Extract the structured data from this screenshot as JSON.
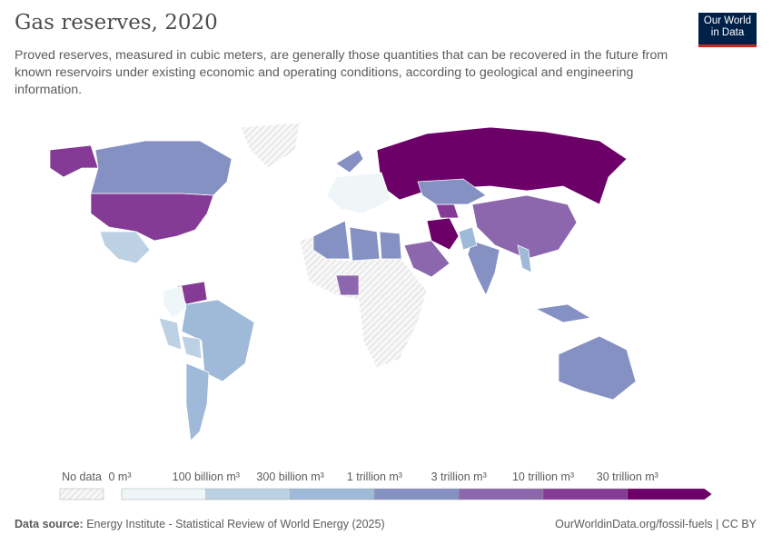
{
  "header": {
    "title": "Gas reserves, 2020",
    "subtitle": "Proved reserves, measured in cubic meters, are generally those quantities that can be recovered in the future from known reservoirs under existing economic and operating conditions, according to geological and engineering information.",
    "logo": "Our World in Data"
  },
  "legend": {
    "no_data_label": "No data",
    "labels": [
      "0 m³",
      "100 billion m³",
      "300 billion m³",
      "1 trillion m³",
      "3 trillion m³",
      "10 trillion m³",
      "30 trillion m³"
    ],
    "colors": [
      "#eef6f7",
      "#bcd1e4",
      "#9fbad8",
      "#8691c3",
      "#8d67ad",
      "#853a95",
      "#6c0068"
    ],
    "no_data_color": "#f0f0f0"
  },
  "map": {
    "regions": [
      {
        "name": "Russia",
        "bin": 6
      },
      {
        "name": "United States",
        "bin": 5
      },
      {
        "name": "Canada",
        "bin": 3
      },
      {
        "name": "Alaska",
        "bin": 5
      },
      {
        "name": "Mexico",
        "bin": 1
      },
      {
        "name": "Venezuela",
        "bin": 5
      },
      {
        "name": "Brazil",
        "bin": 2
      },
      {
        "name": "Argentina",
        "bin": 2
      },
      {
        "name": "Peru",
        "bin": 1
      },
      {
        "name": "Bolivia",
        "bin": 1
      },
      {
        "name": "Colombia",
        "bin": 0
      },
      {
        "name": "Algeria",
        "bin": 3
      },
      {
        "name": "Libya",
        "bin": 3
      },
      {
        "name": "Egypt",
        "bin": 3
      },
      {
        "name": "Nigeria",
        "bin": 4
      },
      {
        "name": "Saudi Arabia",
        "bin": 4
      },
      {
        "name": "Iran",
        "bin": 6
      },
      {
        "name": "Turkmenistan",
        "bin": 5
      },
      {
        "name": "Kazakhstan",
        "bin": 3
      },
      {
        "name": "China",
        "bin": 4
      },
      {
        "name": "India",
        "bin": 3
      },
      {
        "name": "Australia",
        "bin": 3
      },
      {
        "name": "Indonesia",
        "bin": 3
      },
      {
        "name": "Norway",
        "bin": 3
      },
      {
        "name": "Greenland",
        "bin": -1
      },
      {
        "name": "Africa (no data)",
        "bin": -1
      },
      {
        "name": "Myanmar",
        "bin": 2
      },
      {
        "name": "Pakistan",
        "bin": 2
      },
      {
        "name": "Europe",
        "bin": 0
      }
    ]
  },
  "footer": {
    "source_label": "Data source:",
    "source": "Energy Institute - Statistical Review of World Energy (2025)",
    "link": "OurWorldinData.org/fossil-fuels | CC BY"
  }
}
